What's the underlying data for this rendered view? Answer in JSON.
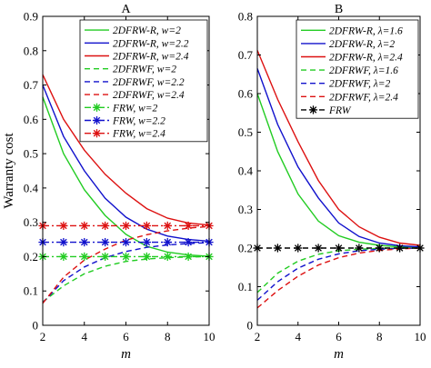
{
  "chart_data": [
    {
      "type": "line",
      "title": "A",
      "xlabel": "m",
      "ylabel": "Warranty cost",
      "xlim": [
        2,
        10
      ],
      "ylim": [
        0,
        0.9
      ],
      "x_ticks": [
        "2",
        "4",
        "6",
        "8",
        "10"
      ],
      "y_ticks": [
        "0",
        "0.1",
        "0.2",
        "0.3",
        "0.4",
        "0.5",
        "0.6",
        "0.7",
        "0.8",
        "0.9"
      ],
      "grid": false,
      "legend_position": "top-right",
      "x": [
        2,
        3,
        4,
        5,
        6,
        7,
        8,
        9,
        10
      ],
      "series": [
        {
          "name": "2DFRW-R, w=2",
          "color": "#22cc22",
          "style": "solid",
          "marker": "",
          "values": [
            0.665,
            0.5,
            0.395,
            0.32,
            0.265,
            0.23,
            0.213,
            0.205,
            0.201
          ]
        },
        {
          "name": "2DFRW-R, w=2.2",
          "color": "#1010cc",
          "style": "solid",
          "marker": "",
          "values": [
            0.7,
            0.55,
            0.45,
            0.37,
            0.315,
            0.28,
            0.26,
            0.25,
            0.245
          ]
        },
        {
          "name": "2DFRW-R, w=2.4",
          "color": "#dd1111",
          "style": "solid",
          "marker": "",
          "values": [
            0.73,
            0.6,
            0.51,
            0.44,
            0.385,
            0.34,
            0.312,
            0.298,
            0.292
          ]
        },
        {
          "name": "2DFRWF, w=2",
          "color": "#22cc22",
          "style": "dashed",
          "marker": "",
          "values": [
            0.068,
            0.115,
            0.15,
            0.172,
            0.186,
            0.193,
            0.197,
            0.199,
            0.2
          ]
        },
        {
          "name": "2DFRWF, w=2.2",
          "color": "#1010cc",
          "style": "dashed",
          "marker": "",
          "values": [
            0.066,
            0.13,
            0.17,
            0.197,
            0.215,
            0.227,
            0.234,
            0.238,
            0.241
          ]
        },
        {
          "name": "2DFRWF, w=2.4",
          "color": "#dd1111",
          "style": "dashed",
          "marker": "",
          "values": [
            0.064,
            0.14,
            0.19,
            0.222,
            0.248,
            0.264,
            0.275,
            0.283,
            0.288
          ]
        },
        {
          "name": "FRW, w=2",
          "color": "#22cc22",
          "style": "dashdot",
          "marker": "*",
          "values": [
            0.2,
            0.2,
            0.2,
            0.2,
            0.2,
            0.2,
            0.2,
            0.2,
            0.2
          ]
        },
        {
          "name": "FRW, w=2.2",
          "color": "#1010cc",
          "style": "dashdot",
          "marker": "*",
          "values": [
            0.242,
            0.242,
            0.242,
            0.242,
            0.242,
            0.242,
            0.242,
            0.242,
            0.242
          ]
        },
        {
          "name": "FRW, w=2.4",
          "color": "#dd1111",
          "style": "dashdot",
          "marker": "*",
          "values": [
            0.29,
            0.29,
            0.29,
            0.29,
            0.29,
            0.29,
            0.29,
            0.29,
            0.29
          ]
        }
      ]
    },
    {
      "type": "line",
      "title": "B",
      "xlabel": "m",
      "ylabel": "",
      "xlim": [
        2,
        10
      ],
      "ylim": [
        0,
        0.8
      ],
      "x_ticks": [
        "2",
        "4",
        "6",
        "8",
        "10"
      ],
      "y_ticks": [
        "0",
        "0.1",
        "0.2",
        "0.3",
        "0.4",
        "0.5",
        "0.6",
        "0.7",
        "0.8"
      ],
      "grid": false,
      "legend_position": "top-right",
      "x": [
        2,
        3,
        4,
        5,
        6,
        7,
        8,
        9,
        10
      ],
      "series": [
        {
          "name": "2DFRW-R, λ=1.6",
          "color": "#22cc22",
          "style": "solid",
          "marker": "",
          "values": [
            0.6,
            0.45,
            0.34,
            0.27,
            0.232,
            0.215,
            0.207,
            0.203,
            0.202
          ]
        },
        {
          "name": "2DFRW-R, λ=2",
          "color": "#1010cc",
          "style": "solid",
          "marker": "",
          "values": [
            0.665,
            0.52,
            0.41,
            0.33,
            0.265,
            0.23,
            0.213,
            0.206,
            0.203
          ]
        },
        {
          "name": "2DFRW-R, λ=2.4",
          "color": "#dd1111",
          "style": "solid",
          "marker": "",
          "values": [
            0.712,
            0.585,
            0.475,
            0.375,
            0.3,
            0.255,
            0.228,
            0.213,
            0.207
          ]
        },
        {
          "name": "2DFRWF, λ=1.6",
          "color": "#22cc22",
          "style": "dashed",
          "marker": "",
          "values": [
            0.085,
            0.135,
            0.166,
            0.184,
            0.193,
            0.197,
            0.199,
            0.2,
            0.2
          ]
        },
        {
          "name": "2DFRWF, λ=2",
          "color": "#1010cc",
          "style": "dashed",
          "marker": "",
          "values": [
            0.065,
            0.113,
            0.148,
            0.171,
            0.185,
            0.193,
            0.197,
            0.199,
            0.2
          ]
        },
        {
          "name": "2DFRWF, λ=2.4",
          "color": "#dd1111",
          "style": "dashed",
          "marker": "",
          "values": [
            0.045,
            0.09,
            0.127,
            0.156,
            0.175,
            0.187,
            0.194,
            0.198,
            0.2
          ]
        },
        {
          "name": "FRW",
          "color": "#000000",
          "style": "dashed",
          "marker": "*",
          "values": [
            0.2,
            0.2,
            0.2,
            0.2,
            0.2,
            0.2,
            0.2,
            0.2,
            0.2
          ]
        }
      ]
    }
  ]
}
